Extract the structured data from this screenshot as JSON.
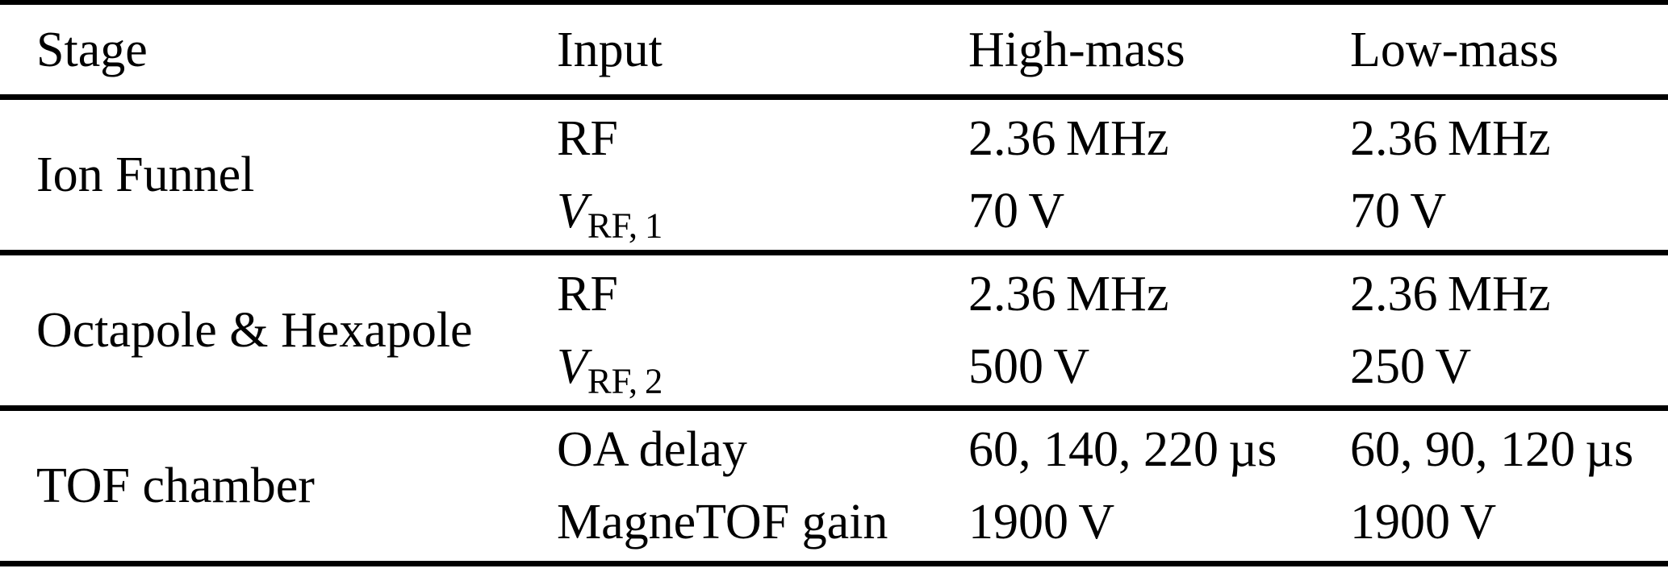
{
  "table": {
    "headers": [
      "Stage",
      "Input",
      "High-mass",
      "Low-mass"
    ],
    "rows": [
      {
        "stage": "Ion Funnel",
        "input_line1": "RF",
        "input_var": "V",
        "input_sub": "RF, 1",
        "high": [
          "2.36 MHz",
          "70 V"
        ],
        "low": [
          "2.36 MHz",
          "70 V"
        ]
      },
      {
        "stage": "Octapole & Hexapole",
        "input_line1": "RF",
        "input_var": "V",
        "input_sub": "RF, 2",
        "high": [
          "2.36 MHz",
          "500 V"
        ],
        "low": [
          "2.36 MHz",
          "250 V"
        ]
      },
      {
        "stage": "TOF chamber",
        "input_line1": "OA delay",
        "input_line2": "MagneTOF gain",
        "high": [
          "60, 140, 220 µs",
          "1900 V"
        ],
        "low": [
          "60, 90, 120 µs",
          "1900 V"
        ]
      }
    ]
  },
  "colors": {
    "background": "#ffffff",
    "text": "#000000",
    "rule": "#000000"
  }
}
